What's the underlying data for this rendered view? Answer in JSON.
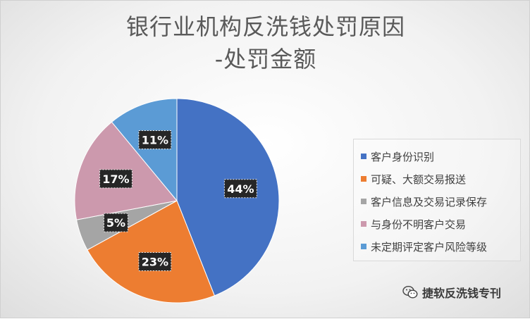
{
  "chart_data": {
    "type": "pie",
    "title_line1": "银行业机构反洗钱处罚原因",
    "title_line2": "-处罚金额",
    "categories": [
      "客户身份识别",
      "可疑、大额交易报送",
      "客户信息及交易记录保存",
      "与身份不明客户交易",
      "未定期评定客户风险等级"
    ],
    "values": [
      44,
      23,
      5,
      17,
      11
    ],
    "data_labels": [
      "44%",
      "23%",
      "5%",
      "17%",
      "11%"
    ],
    "colors": [
      "#4472C4",
      "#ED7D31",
      "#A5A5A5",
      "#CC99AD",
      "#5B9BD5"
    ],
    "legend_position": "right"
  },
  "watermark": {
    "text": "捷软反洗钱专刊",
    "icon": "wechat-icon"
  }
}
